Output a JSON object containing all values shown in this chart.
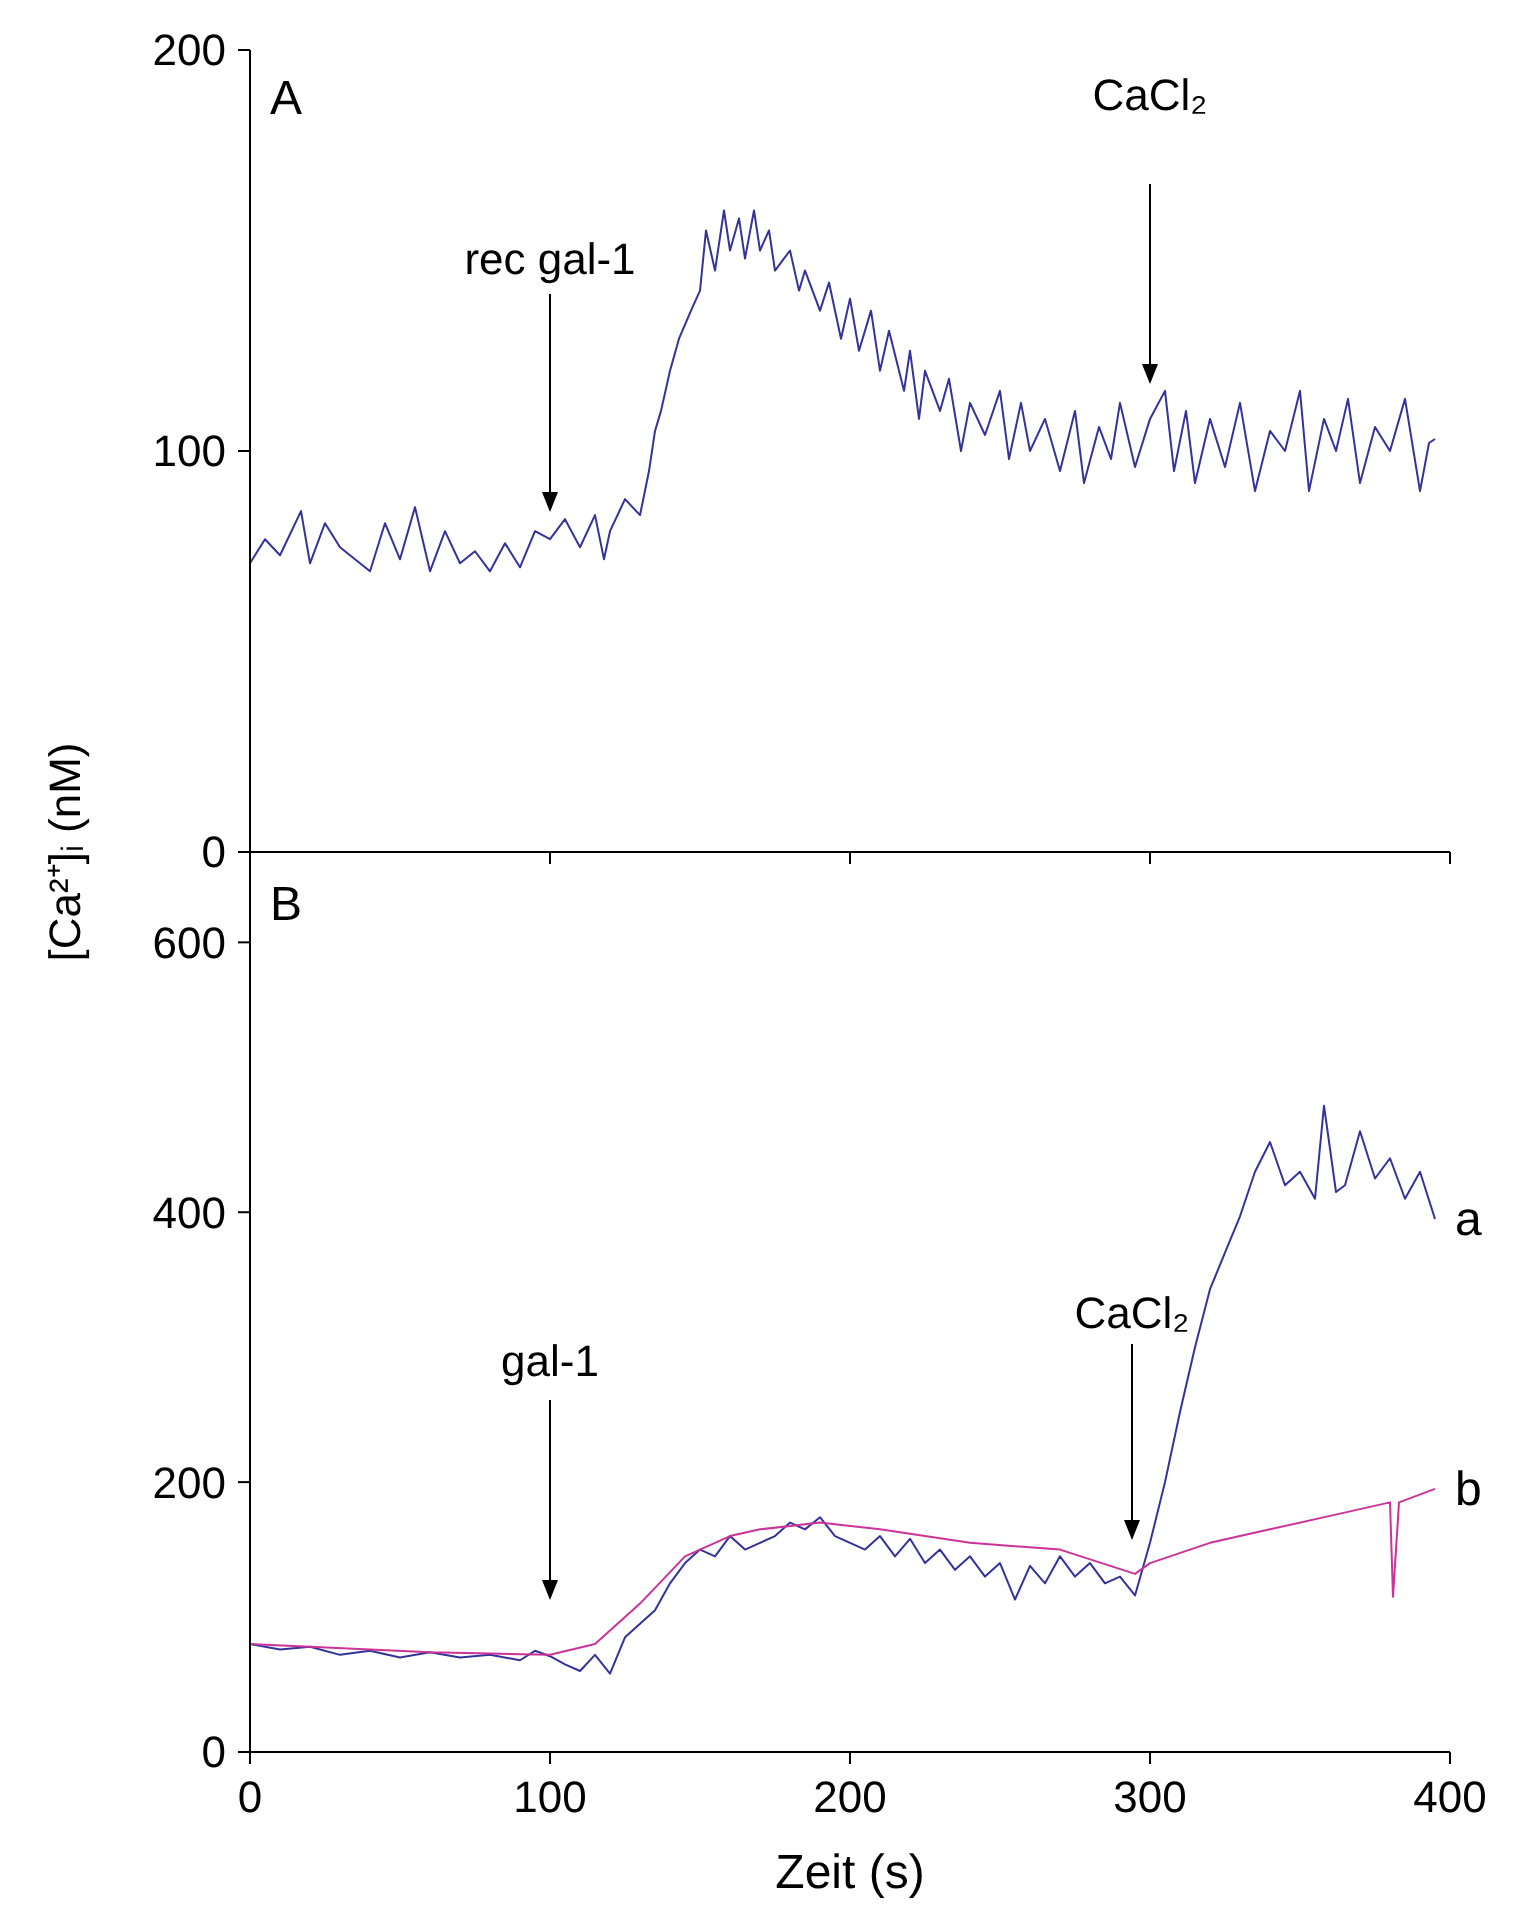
{
  "chart_data": [
    {
      "type": "line",
      "ylabel": "[Ca²⁺]ᵢ (nM)",
      "xlim": [
        0,
        400
      ],
      "xticks": [
        0,
        100,
        200,
        300,
        400
      ],
      "ylim": [
        0,
        200
      ],
      "yticks": [
        0,
        100,
        200
      ],
      "tick_labels": "y",
      "annotations": [
        "A",
        "rec gal-1",
        "CaCl₂"
      ],
      "series": [
        {
          "color": "#333399",
          "x": [
            0,
            5,
            10,
            17,
            20,
            25,
            30,
            35,
            40,
            45,
            50,
            55,
            60,
            65,
            70,
            75,
            80,
            85,
            90,
            95,
            100,
            105,
            110,
            115,
            118,
            120,
            125,
            130,
            133,
            135,
            137,
            140,
            143,
            147,
            150,
            152,
            155,
            158,
            160,
            163,
            165,
            168,
            170,
            173,
            175,
            180,
            183,
            185,
            190,
            193,
            197,
            200,
            203,
            207,
            210,
            213,
            218,
            220,
            223,
            225,
            230,
            233,
            237,
            240,
            245,
            250,
            253,
            257,
            260,
            265,
            270,
            275,
            278,
            283,
            287,
            290,
            295,
            300,
            305,
            308,
            312,
            315,
            320,
            325,
            330,
            335,
            340,
            345,
            350,
            353,
            358,
            362,
            366,
            370,
            375,
            380,
            385,
            390,
            393,
            395
          ],
          "values": [
            72,
            78,
            74,
            85,
            72,
            82,
            76,
            73,
            70,
            82,
            73,
            86,
            70,
            80,
            72,
            75,
            70,
            77,
            71,
            80,
            78,
            83,
            76,
            84,
            73,
            80,
            88,
            84,
            95,
            105,
            110,
            120,
            128,
            135,
            140,
            155,
            145,
            160,
            150,
            158,
            148,
            160,
            150,
            155,
            145,
            150,
            140,
            145,
            135,
            142,
            128,
            138,
            125,
            135,
            120,
            130,
            115,
            125,
            108,
            120,
            110,
            118,
            100,
            112,
            104,
            115,
            98,
            112,
            100,
            108,
            95,
            110,
            92,
            106,
            98,
            112,
            96,
            108,
            115,
            95,
            110,
            92,
            108,
            96,
            112,
            90,
            105,
            100,
            115,
            90,
            108,
            100,
            113,
            92,
            106,
            100,
            113,
            90,
            102,
            103
          ]
        }
      ]
    },
    {
      "type": "line",
      "xlabel": "Zeit (s)",
      "xlim": [
        0,
        400
      ],
      "xticks": [
        0,
        100,
        200,
        300,
        400
      ],
      "ylim": [
        0,
        664
      ],
      "yticks": [
        0,
        200,
        400,
        600
      ],
      "annotations": [
        "B",
        "gal-1",
        "CaCl₂"
      ],
      "series": [
        {
          "name": "a",
          "color": "#333399",
          "x": [
            0,
            10,
            20,
            30,
            40,
            50,
            60,
            70,
            80,
            90,
            95,
            100,
            105,
            110,
            115,
            120,
            125,
            130,
            135,
            140,
            145,
            150,
            155,
            160,
            165,
            170,
            175,
            180,
            185,
            190,
            195,
            200,
            205,
            210,
            215,
            220,
            225,
            230,
            235,
            240,
            245,
            250,
            255,
            260,
            265,
            270,
            275,
            280,
            285,
            290,
            295,
            300,
            305,
            310,
            315,
            320,
            325,
            330,
            335,
            340,
            345,
            350,
            355,
            358,
            362,
            365,
            370,
            375,
            380,
            385,
            390,
            395
          ],
          "values": [
            80,
            76,
            78,
            72,
            75,
            70,
            74,
            70,
            72,
            68,
            75,
            71,
            65,
            60,
            72,
            58,
            85,
            95,
            105,
            125,
            140,
            150,
            145,
            160,
            150,
            155,
            160,
            170,
            165,
            174,
            160,
            155,
            150,
            160,
            145,
            158,
            140,
            150,
            135,
            145,
            130,
            140,
            113,
            138,
            125,
            145,
            130,
            140,
            125,
            130,
            116,
            155,
            200,
            252,
            300,
            343,
            370,
            397,
            430,
            452,
            420,
            430,
            410,
            479,
            415,
            420,
            460,
            425,
            440,
            410,
            430,
            395
          ]
        },
        {
          "name": "b",
          "color": "#cc3399",
          "x": [
            0,
            20,
            40,
            60,
            80,
            100,
            115,
            130,
            145,
            160,
            170,
            190,
            210,
            240,
            270,
            295,
            300,
            320,
            340,
            360,
            380,
            381,
            382,
            383,
            395
          ],
          "values": [
            80,
            78,
            76,
            74,
            73,
            72,
            80,
            110,
            145,
            160,
            165,
            170,
            165,
            155,
            150,
            132,
            140,
            155,
            165,
            175,
            185,
            115,
            150,
            185,
            195
          ]
        }
      ]
    }
  ]
}
